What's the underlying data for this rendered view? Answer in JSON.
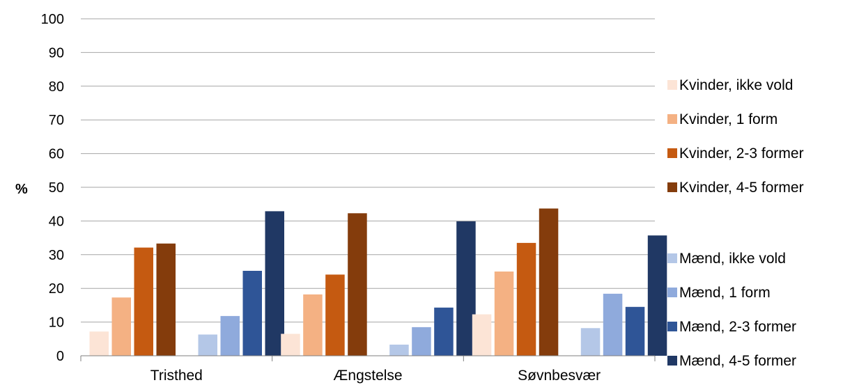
{
  "chart_data": {
    "type": "bar",
    "ylabel": "%",
    "xlabel": "",
    "ylim": [
      0,
      100
    ],
    "yticks": [
      0,
      10,
      20,
      30,
      40,
      50,
      60,
      70,
      80,
      90,
      100
    ],
    "grid": true,
    "legend_position": "right",
    "categories": [
      "Tristhed",
      "Ængstelse",
      "Søvnbesvær"
    ],
    "series": [
      {
        "name": "Kvinder, ikke vold",
        "color": "#FCE4D6",
        "values": [
          7.2,
          6.5,
          12.3
        ]
      },
      {
        "name": "Kvinder, 1 form",
        "color": "#F4B183",
        "values": [
          17.3,
          18.2,
          25.0
        ]
      },
      {
        "name": "Kvinder, 2-3 former",
        "color": "#C55A11",
        "values": [
          32.1,
          24.1,
          33.5
        ]
      },
      {
        "name": "Kvinder, 4-5 former",
        "color": "#843C0C",
        "values": [
          33.3,
          42.3,
          43.7
        ]
      },
      {
        "name": "Mænd, ikke vold",
        "color": "#B4C7E7",
        "values": [
          6.3,
          3.3,
          8.2
        ]
      },
      {
        "name": "Mænd, 1 form",
        "color": "#8FAADC",
        "values": [
          11.8,
          8.5,
          18.4
        ]
      },
      {
        "name": "Mænd, 2-3 former",
        "color": "#2F5597",
        "values": [
          25.2,
          14.3,
          14.5
        ]
      },
      {
        "name": "Mænd, 4-5 former",
        "color": "#203864",
        "values": [
          42.9,
          39.9,
          35.7
        ]
      }
    ]
  }
}
